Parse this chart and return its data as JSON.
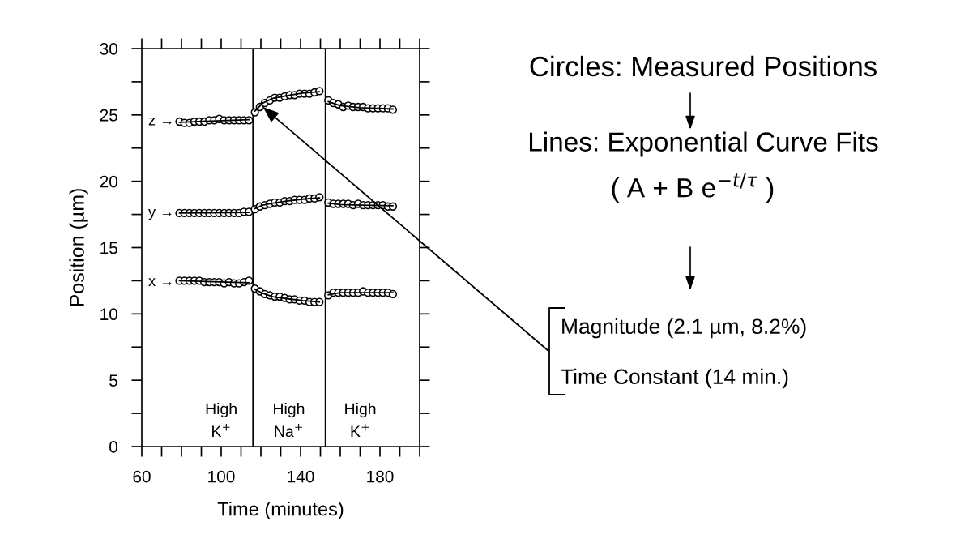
{
  "chart_data": {
    "type": "scatter",
    "xlabel": "Time (minutes)",
    "ylabel": "Position (µm)",
    "xlim": [
      60,
      200
    ],
    "ylim": [
      0,
      30
    ],
    "xticks": [
      60,
      {
        "value": 70,
        "label": null
      },
      {
        "value": 80,
        "label": null
      },
      {
        "value": 90,
        "label": null
      },
      100,
      {
        "value": 110,
        "label": null
      },
      {
        "value": 120,
        "label": null
      },
      {
        "value": 130,
        "label": null
      },
      140,
      {
        "value": 150,
        "label": null
      },
      {
        "value": 160,
        "label": null
      },
      {
        "value": 170,
        "label": null
      },
      180,
      {
        "value": 190,
        "label": null
      },
      {
        "value": 200,
        "label": null
      }
    ],
    "yticks": [
      0,
      {
        "value": 2.5,
        "label": null
      },
      5,
      {
        "value": 7.5,
        "label": null
      },
      10,
      {
        "value": 12.5,
        "label": null
      },
      15,
      {
        "value": 17.5,
        "label": null
      },
      20,
      {
        "value": 22.5,
        "label": null
      },
      25,
      {
        "value": 27.5,
        "label": null
      },
      30
    ],
    "marker": "circle",
    "line_style": "solid",
    "x": [
      79,
      81.5,
      84,
      86.5,
      89,
      91.5,
      94,
      96.5,
      99,
      101.5,
      104,
      106.5,
      109,
      111.5,
      114,
      117,
      119.5,
      122,
      124.5,
      127,
      129.5,
      132,
      134.5,
      137,
      139.5,
      142,
      144.5,
      147,
      149.5,
      154,
      156.5,
      159,
      161.5,
      164,
      166.5,
      169,
      171.5,
      174,
      176.5,
      179,
      181.5,
      184,
      186.5
    ],
    "series": [
      {
        "color": "#000000",
        "values": [
          24.5,
          24.4,
          24.4,
          24.5,
          24.5,
          24.5,
          24.6,
          24.6,
          24.7,
          24.6,
          24.6,
          24.6,
          24.6,
          24.6,
          24.6,
          25.2,
          25.6,
          25.9,
          26.1,
          26.3,
          26.3,
          26.4,
          26.5,
          26.5,
          26.6,
          26.6,
          26.6,
          26.7,
          26.8,
          26.1,
          25.9,
          25.8,
          25.6,
          25.7,
          25.6,
          25.6,
          25.6,
          25.5,
          25.5,
          25.5,
          25.5,
          25.5,
          25.4
        ]
      },
      {
        "color": "#000000",
        "values": [
          17.6,
          17.6,
          17.6,
          17.6,
          17.6,
          17.6,
          17.6,
          17.6,
          17.6,
          17.6,
          17.6,
          17.6,
          17.6,
          17.7,
          17.7,
          17.9,
          18.1,
          18.2,
          18.3,
          18.4,
          18.4,
          18.5,
          18.5,
          18.6,
          18.6,
          18.6,
          18.7,
          18.7,
          18.8,
          18.4,
          18.3,
          18.3,
          18.3,
          18.3,
          18.2,
          18.3,
          18.2,
          18.2,
          18.2,
          18.2,
          18.2,
          18.1,
          18.1
        ]
      },
      {
        "color": "#000000",
        "values": [
          12.5,
          12.5,
          12.5,
          12.5,
          12.5,
          12.4,
          12.4,
          12.4,
          12.4,
          12.3,
          12.4,
          12.3,
          12.3,
          12.4,
          12.5,
          11.9,
          11.7,
          11.5,
          11.4,
          11.3,
          11.3,
          11.2,
          11.1,
          11.1,
          11.0,
          11.0,
          10.9,
          10.9,
          10.9,
          11.4,
          11.6,
          11.6,
          11.6,
          11.6,
          11.6,
          11.6,
          11.7,
          11.6,
          11.6,
          11.6,
          11.6,
          11.6,
          11.5
        ]
      },
      {
        "type": "line",
        "marker": "none",
        "color": "#000000",
        "x": [
          79,
          114,
          115.5,
          117,
          121,
          126,
          133,
          141,
          149.5,
          153,
          154,
          160,
          170,
          186.5
        ],
        "values": [
          24.45,
          24.65,
          null,
          25.3,
          25.9,
          26.25,
          26.45,
          26.65,
          26.75,
          null,
          26.0,
          25.7,
          25.55,
          25.45
        ]
      },
      {
        "type": "line",
        "marker": "none",
        "color": "#000000",
        "x": [
          79,
          114,
          115.5,
          117,
          121,
          126,
          133,
          141,
          149.5,
          153,
          154,
          160,
          170,
          186.5
        ],
        "values": [
          17.6,
          17.65,
          null,
          17.95,
          18.2,
          18.35,
          18.5,
          18.65,
          18.75,
          null,
          18.35,
          18.25,
          18.2,
          18.15
        ]
      },
      {
        "type": "line",
        "marker": "none",
        "color": "#000000",
        "x": [
          79,
          114,
          115.5,
          117,
          121,
          126,
          133,
          141,
          149.5,
          153,
          154,
          160,
          170,
          186.5
        ],
        "values": [
          12.5,
          12.35,
          null,
          11.85,
          11.55,
          11.3,
          11.15,
          11.0,
          10.9,
          null,
          11.45,
          11.6,
          11.6,
          11.6
        ]
      }
    ],
    "ref_lines": [
      {
        "axis": "x",
        "value": 116,
        "color": "#000000"
      },
      {
        "axis": "x",
        "value": 152.5,
        "color": "#000000"
      }
    ],
    "annotations": [
      "z →",
      "y →",
      "x →",
      "High\nK$^{+}$",
      "High\nNa$^{+}$",
      "High\nK$^{+}$",
      "Circles: Measured Positions",
      "Lines: Exponential Curve Fits",
      "( A + B e$^{−t/τ}$ )",
      {
        "text": "Magnitude (2.1 µm, 8.2%)",
        "x": 121,
        "y": 25.6
      },
      "Time Constant (14 min.)"
    ]
  }
}
